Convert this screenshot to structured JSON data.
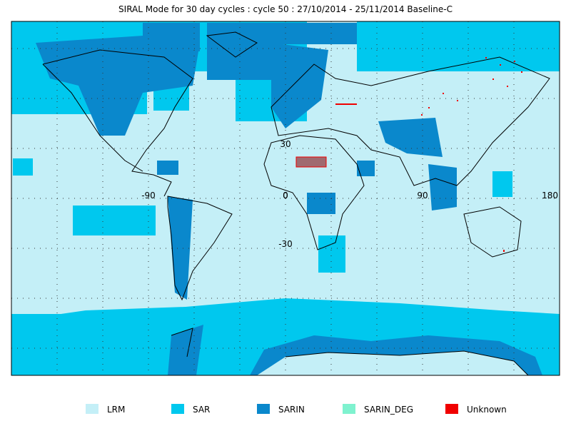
{
  "title": "SIRAL Mode for 30 day cycles : cycle 50 : 27/10/2014 - 25/11/2014 Baseline-C",
  "grid_labels": {
    "lon": [
      -90,
      0,
      90,
      180
    ],
    "lat": [
      30,
      0,
      -30
    ]
  },
  "legend": [
    {
      "label": "LRM",
      "color": "#c4eff7"
    },
    {
      "label": "SAR",
      "color": "#00c8ee"
    },
    {
      "label": "SARIN",
      "color": "#0a88cc"
    },
    {
      "label": "SARIN_DEG",
      "color": "#7ff2cf"
    },
    {
      "label": "Unknown",
      "color": "#f00000"
    }
  ]
}
